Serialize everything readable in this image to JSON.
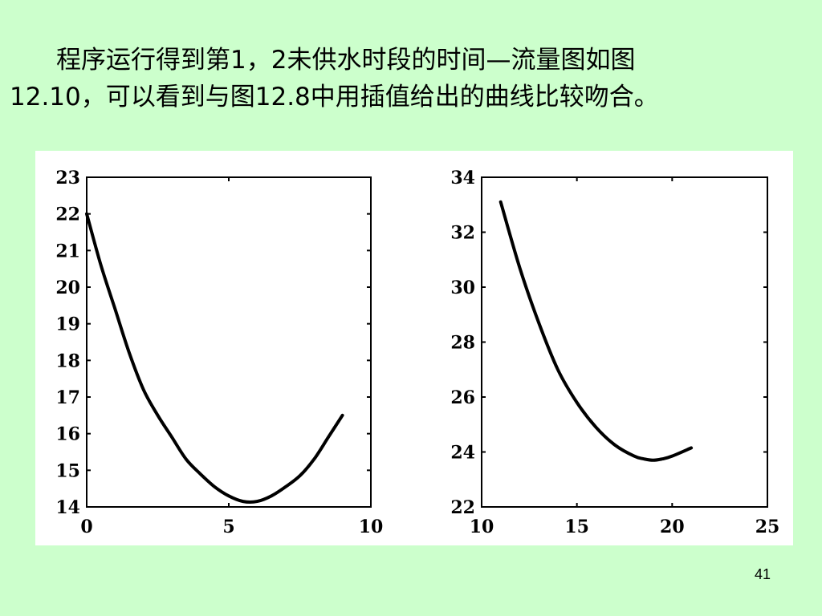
{
  "slide": {
    "text_line1": "程序运行得到第1，2未供水时段的时间—流量图如图",
    "text_line2": "12.10，可以看到与图12.8中用插值给出的曲线比较吻合。",
    "page_number": "41"
  },
  "chart_data": [
    {
      "type": "line",
      "title": "",
      "xlabel": "",
      "ylabel": "",
      "xlim": [
        0,
        10
      ],
      "ylim": [
        14,
        23
      ],
      "xticks": [
        0,
        5,
        10
      ],
      "yticks": [
        14,
        15,
        16,
        17,
        18,
        19,
        20,
        21,
        22,
        23
      ],
      "grid": false,
      "series": [
        {
          "x": [
            0,
            0.5,
            1,
            1.5,
            2,
            2.5,
            3,
            3.5,
            4,
            4.5,
            5,
            5.5,
            6,
            6.5,
            7,
            7.5,
            8,
            8.5,
            9
          ],
          "y": [
            22.0,
            20.6,
            19.4,
            18.2,
            17.2,
            16.5,
            15.9,
            15.3,
            14.9,
            14.55,
            14.3,
            14.15,
            14.15,
            14.3,
            14.55,
            14.85,
            15.3,
            15.9,
            16.5
          ]
        }
      ]
    },
    {
      "type": "line",
      "title": "",
      "xlabel": "",
      "ylabel": "",
      "xlim": [
        10,
        25
      ],
      "ylim": [
        22,
        34
      ],
      "xticks": [
        10,
        15,
        20,
        25
      ],
      "yticks": [
        22,
        24,
        26,
        28,
        30,
        32,
        34
      ],
      "grid": false,
      "series": [
        {
          "x": [
            11,
            12,
            13,
            14,
            15,
            16,
            17,
            18,
            18.5,
            19,
            19.5,
            20,
            21
          ],
          "y": [
            33.1,
            30.7,
            28.7,
            27.0,
            25.8,
            24.9,
            24.25,
            23.85,
            23.75,
            23.7,
            23.75,
            23.85,
            24.15
          ]
        }
      ]
    }
  ]
}
